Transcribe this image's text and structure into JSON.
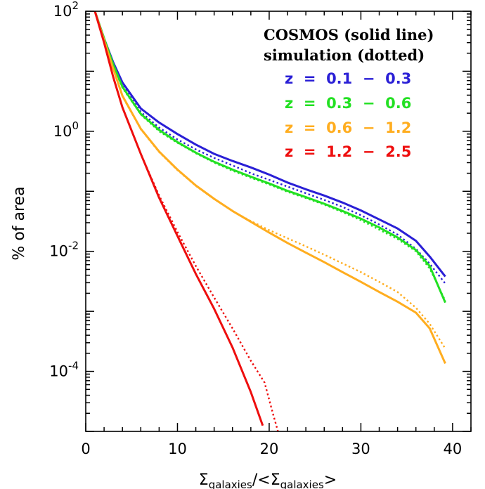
{
  "chart_data": {
    "type": "line",
    "xlabel_main": "Σ",
    "xlabel_sub": "galaxies",
    "xlabel_mid": "/<Σ",
    "xlabel_sub2": "galaxies",
    "xlabel_end": ">",
    "ylabel": "% of area",
    "xlim": [
      0,
      42
    ],
    "ylim": [
      1e-05,
      100
    ],
    "ylog": true,
    "x_ticks": [
      {
        "value": 0,
        "label": "0"
      },
      {
        "value": 10,
        "label": "10"
      },
      {
        "value": 20,
        "label": "20"
      },
      {
        "value": 30,
        "label": "30"
      },
      {
        "value": 40,
        "label": "40"
      }
    ],
    "y_ticks": [
      {
        "value": 100,
        "base": "10",
        "exp": "2"
      },
      {
        "value": 1,
        "base": "10",
        "exp": "0"
      },
      {
        "value": 0.01,
        "base": "10",
        "exp": "-2"
      },
      {
        "value": 0.0001,
        "base": "10",
        "exp": "-4"
      }
    ],
    "legend": {
      "placement": "top-right",
      "header_lines": [
        "COSMOS (solid line)",
        "simulation (dotted)"
      ]
    },
    "series": [
      {
        "name": "z  =  0.1  −  0.3",
        "color": "#2a1fd6",
        "solid": [
          [
            1,
            100
          ],
          [
            2,
            35
          ],
          [
            3,
            14
          ],
          [
            4,
            6.5
          ],
          [
            6,
            2.4
          ],
          [
            8,
            1.4
          ],
          [
            10,
            0.9
          ],
          [
            12,
            0.6
          ],
          [
            14,
            0.42
          ],
          [
            16,
            0.32
          ],
          [
            18,
            0.25
          ],
          [
            20,
            0.19
          ],
          [
            22,
            0.14
          ],
          [
            24,
            0.108
          ],
          [
            26,
            0.085
          ],
          [
            28,
            0.065
          ],
          [
            30,
            0.048
          ],
          [
            32,
            0.034
          ],
          [
            34,
            0.024
          ],
          [
            36,
            0.015
          ],
          [
            37.5,
            0.0082
          ],
          [
            39.2,
            0.0038
          ]
        ],
        "dotted": [
          [
            1,
            100
          ],
          [
            2,
            35
          ],
          [
            3,
            13
          ],
          [
            4,
            5.8
          ],
          [
            6,
            2.1
          ],
          [
            8,
            1.15
          ],
          [
            10,
            0.73
          ],
          [
            12,
            0.5
          ],
          [
            14,
            0.36
          ],
          [
            16,
            0.27
          ],
          [
            18,
            0.2
          ],
          [
            20,
            0.155
          ],
          [
            22,
            0.12
          ],
          [
            24,
            0.093
          ],
          [
            26,
            0.072
          ],
          [
            28,
            0.055
          ],
          [
            30,
            0.04
          ],
          [
            32,
            0.028
          ],
          [
            34,
            0.019
          ],
          [
            36,
            0.011
          ],
          [
            37.5,
            0.0062
          ],
          [
            39.2,
            0.0029
          ]
        ]
      },
      {
        "name": "z  =  0.3  −  0.6",
        "color": "#22e022",
        "solid": [
          [
            1,
            100
          ],
          [
            2,
            35
          ],
          [
            3,
            13
          ],
          [
            4,
            5.5
          ],
          [
            6,
            1.95
          ],
          [
            8,
            1.05
          ],
          [
            10,
            0.66
          ],
          [
            12,
            0.44
          ],
          [
            14,
            0.31
          ],
          [
            16,
            0.23
          ],
          [
            18,
            0.175
          ],
          [
            20,
            0.135
          ],
          [
            22,
            0.102
          ],
          [
            24,
            0.08
          ],
          [
            26,
            0.062
          ],
          [
            28,
            0.047
          ],
          [
            30,
            0.035
          ],
          [
            32,
            0.025
          ],
          [
            34,
            0.017
          ],
          [
            36,
            0.0105
          ],
          [
            37.5,
            0.0057
          ],
          [
            39.2,
            0.0014
          ]
        ],
        "dotted": [
          [
            1,
            100
          ],
          [
            2,
            35
          ],
          [
            3,
            12.5
          ],
          [
            4,
            5.3
          ],
          [
            6,
            1.9
          ],
          [
            8,
            1.0
          ],
          [
            10,
            0.64
          ],
          [
            12,
            0.43
          ],
          [
            14,
            0.3
          ],
          [
            16,
            0.22
          ],
          [
            18,
            0.168
          ],
          [
            20,
            0.13
          ],
          [
            22,
            0.098
          ],
          [
            24,
            0.077
          ],
          [
            26,
            0.06
          ],
          [
            28,
            0.045
          ],
          [
            30,
            0.033
          ],
          [
            32,
            0.023
          ],
          [
            34,
            0.016
          ],
          [
            36,
            0.01
          ],
          [
            37.5,
            0.0052
          ],
          [
            39.2,
            0.0015
          ]
        ]
      },
      {
        "name": "z  =  0.6  −  1.2",
        "color": "#ffad1f",
        "solid": [
          [
            1,
            100
          ],
          [
            2,
            33
          ],
          [
            3,
            11
          ],
          [
            4,
            3.9
          ],
          [
            6,
            1.1
          ],
          [
            8,
            0.46
          ],
          [
            10,
            0.23
          ],
          [
            12,
            0.125
          ],
          [
            14,
            0.075
          ],
          [
            16,
            0.047
          ],
          [
            18,
            0.031
          ],
          [
            20,
            0.0205
          ],
          [
            22,
            0.0138
          ],
          [
            24,
            0.0095
          ],
          [
            26,
            0.0066
          ],
          [
            28,
            0.0045
          ],
          [
            30,
            0.0031
          ],
          [
            32,
            0.0021
          ],
          [
            34,
            0.00145
          ],
          [
            36,
            0.00095
          ],
          [
            37.5,
            0.00052
          ],
          [
            39.2,
            0.000135
          ]
        ],
        "dotted": [
          [
            1,
            100
          ],
          [
            2,
            33
          ],
          [
            3,
            11
          ],
          [
            4,
            3.8
          ],
          [
            6,
            1.08
          ],
          [
            8,
            0.45
          ],
          [
            10,
            0.225
          ],
          [
            12,
            0.123
          ],
          [
            14,
            0.074
          ],
          [
            16,
            0.047
          ],
          [
            18,
            0.032
          ],
          [
            20,
            0.0225
          ],
          [
            22,
            0.0165
          ],
          [
            24,
            0.0121
          ],
          [
            26,
            0.0088
          ],
          [
            28,
            0.0063
          ],
          [
            30,
            0.0045
          ],
          [
            32,
            0.0031
          ],
          [
            34,
            0.0021
          ],
          [
            36,
            0.00115
          ],
          [
            37.5,
            0.00062
          ],
          [
            39.2,
            0.00024
          ]
        ]
      },
      {
        "name": "z  =  1.2  −  2.5",
        "color": "#ee0e0e",
        "solid": [
          [
            1,
            100
          ],
          [
            2,
            30
          ],
          [
            3,
            8
          ],
          [
            4,
            2.5
          ],
          [
            6,
            0.42
          ],
          [
            8,
            0.078
          ],
          [
            10,
            0.018
          ],
          [
            12,
            0.0042
          ],
          [
            14,
            0.0011
          ],
          [
            16,
            0.00025
          ],
          [
            18,
            4.5e-05
          ],
          [
            19.3,
            1.25e-05
          ]
        ],
        "dotted": [
          [
            1,
            100
          ],
          [
            2,
            30
          ],
          [
            3,
            8
          ],
          [
            4,
            2.5
          ],
          [
            6,
            0.42
          ],
          [
            8,
            0.085
          ],
          [
            10,
            0.021
          ],
          [
            12,
            0.0057
          ],
          [
            14,
            0.0017
          ],
          [
            16,
            0.00052
          ],
          [
            18,
            0.00015
          ],
          [
            19.5,
            6.5e-05
          ],
          [
            20.4,
            2e-05
          ],
          [
            21,
            9.5e-06
          ]
        ]
      }
    ]
  }
}
